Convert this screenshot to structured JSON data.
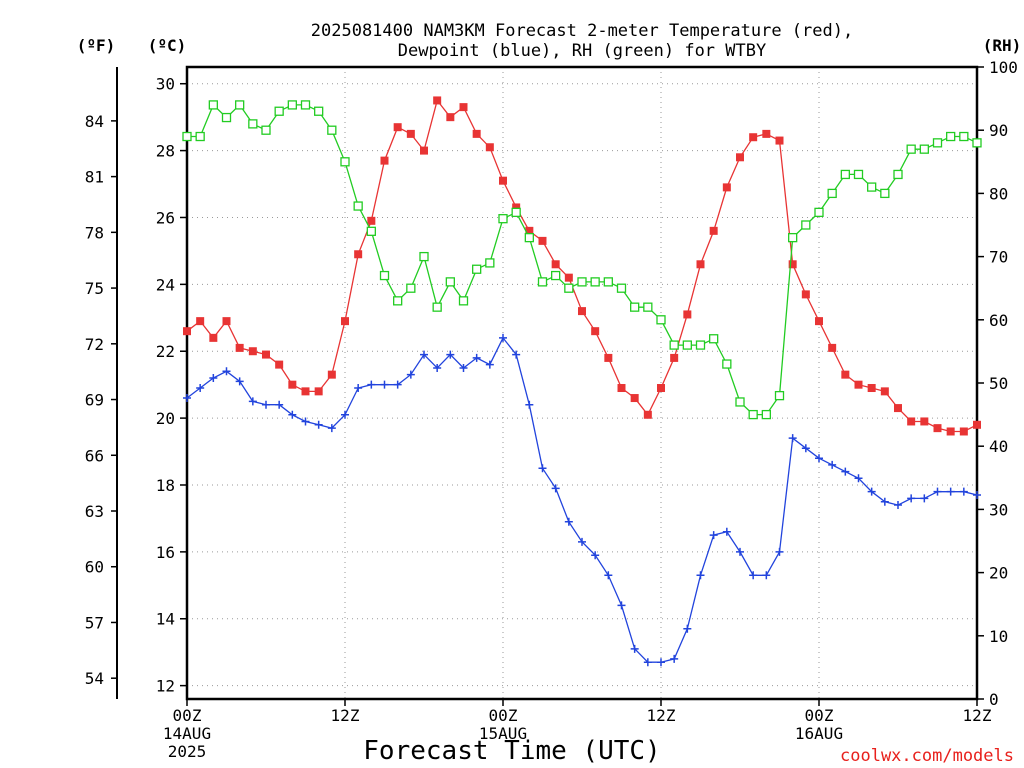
{
  "chart_data": {
    "type": "line",
    "title_lines": [
      "2025081400 NAM3KM Forecast 2-meter Temperature (red),",
      "Dewpoint (blue), RH (green) for WTBY"
    ],
    "xlabel": "Forecast Time (UTC)",
    "credit": "coolwx.com/models",
    "unit_labels": {
      "fahrenheit": "(ºF)",
      "celsius": "(ºC)",
      "rh": "(RH)"
    },
    "x_ticks": [
      {
        "hour": 0,
        "lines": [
          "00Z",
          "14AUG",
          "2025"
        ]
      },
      {
        "hour": 12,
        "lines": [
          "12Z"
        ]
      },
      {
        "hour": 24,
        "lines": [
          "00Z",
          "15AUG"
        ]
      },
      {
        "hour": 36,
        "lines": [
          "12Z"
        ]
      },
      {
        "hour": 48,
        "lines": [
          "00Z",
          "16AUG"
        ]
      },
      {
        "hour": 60,
        "lines": [
          "12Z"
        ]
      }
    ],
    "xlim": [
      0,
      60
    ],
    "ylim_c": [
      11.6,
      30.5
    ],
    "ylim_rh": [
      0,
      100
    ],
    "celsius_ticks": [
      "12",
      "14",
      "16",
      "18",
      "20",
      "22",
      "24",
      "26",
      "28",
      "30"
    ],
    "fahrenheit_ticks": [
      "54",
      "57",
      "60",
      "63",
      "66",
      "69",
      "72",
      "75",
      "78",
      "81",
      "84"
    ],
    "rh_ticks": [
      "0",
      "10",
      "20",
      "30",
      "40",
      "50",
      "60",
      "70",
      "80",
      "90",
      "100"
    ],
    "grid": true,
    "colors": {
      "temperature": "#e83434",
      "dewpoint": "#2244dd",
      "rh": "#22cc22",
      "credit": "#e8201c"
    },
    "series": [
      {
        "name": "Temperature",
        "axis": "celsius",
        "marker": "filled-square",
        "hours": [
          0,
          1,
          2,
          3,
          4,
          5,
          6,
          7,
          8,
          9,
          10,
          11,
          12,
          13,
          14,
          15,
          16,
          17,
          18,
          19,
          20,
          21,
          22,
          23,
          24,
          25,
          26,
          27,
          28,
          29,
          30,
          31,
          32,
          33,
          34,
          35,
          36,
          37,
          38,
          39,
          40,
          41,
          42,
          43,
          44,
          45,
          46,
          47,
          48,
          49,
          50,
          51,
          52,
          53,
          54,
          55,
          56,
          57,
          58,
          59,
          60
        ],
        "values": [
          22.6,
          22.9,
          22.4,
          22.9,
          22.1,
          22.0,
          21.9,
          21.6,
          21.0,
          20.8,
          20.8,
          21.3,
          22.9,
          24.9,
          25.9,
          27.7,
          28.7,
          28.5,
          28.0,
          29.5,
          29.0,
          29.3,
          28.5,
          28.1,
          27.1,
          26.3,
          25.6,
          25.3,
          24.6,
          24.2,
          23.2,
          22.6,
          21.8,
          20.9,
          20.6,
          20.1,
          20.9,
          21.8,
          23.1,
          24.6,
          25.6,
          26.9,
          27.8,
          28.4,
          28.5,
          28.3,
          24.6,
          23.7,
          22.9,
          22.1,
          21.3,
          21.0,
          20.9,
          20.8,
          20.3,
          19.9,
          19.9,
          19.7,
          19.6,
          19.6,
          19.8
        ]
      },
      {
        "name": "Dewpoint",
        "axis": "celsius",
        "marker": "plus",
        "hours": [
          0,
          1,
          2,
          3,
          4,
          5,
          6,
          7,
          8,
          9,
          10,
          11,
          12,
          13,
          14,
          15,
          16,
          17,
          18,
          19,
          20,
          21,
          22,
          23,
          24,
          25,
          26,
          27,
          28,
          29,
          30,
          31,
          32,
          33,
          34,
          35,
          36,
          37,
          38,
          39,
          40,
          41,
          42,
          43,
          44,
          45,
          46,
          47,
          48,
          49,
          50,
          51,
          52,
          53,
          54,
          55,
          56,
          57,
          58,
          59,
          60
        ],
        "values": [
          20.6,
          20.9,
          21.2,
          21.4,
          21.1,
          20.5,
          20.4,
          20.4,
          20.1,
          19.9,
          19.8,
          19.7,
          20.1,
          20.9,
          21.0,
          21.0,
          21.0,
          21.3,
          21.9,
          21.5,
          21.9,
          21.5,
          21.8,
          21.6,
          22.4,
          21.9,
          20.4,
          18.5,
          17.9,
          16.9,
          16.3,
          15.9,
          15.3,
          14.4,
          13.1,
          12.7,
          12.7,
          12.8,
          13.7,
          15.3,
          16.5,
          16.6,
          16.0,
          15.3,
          15.3,
          16.0,
          19.4,
          19.1,
          18.8,
          18.6,
          18.4,
          18.2,
          17.8,
          17.5,
          17.4,
          17.6,
          17.6,
          17.8,
          17.8,
          17.8,
          17.7
        ]
      },
      {
        "name": "RH",
        "axis": "rh",
        "marker": "open-square",
        "hours": [
          0,
          1,
          2,
          3,
          4,
          5,
          6,
          7,
          8,
          9,
          10,
          11,
          12,
          13,
          14,
          15,
          16,
          17,
          18,
          19,
          20,
          21,
          22,
          23,
          24,
          25,
          26,
          27,
          28,
          29,
          30,
          31,
          32,
          33,
          34,
          35,
          36,
          37,
          38,
          39,
          40,
          41,
          42,
          43,
          44,
          45,
          46,
          47,
          48,
          49,
          50,
          51,
          52,
          53,
          54,
          55,
          56,
          57,
          58,
          59,
          60
        ],
        "values": [
          89,
          89,
          94,
          92,
          94,
          91,
          90,
          93,
          94,
          94,
          93,
          90,
          85,
          78,
          74,
          67,
          63,
          65,
          70,
          62,
          66,
          63,
          68,
          69,
          76,
          77,
          73,
          66,
          67,
          65,
          66,
          66,
          66,
          65,
          62,
          62,
          60,
          56,
          56,
          56,
          57,
          53,
          47,
          45,
          45,
          48,
          73,
          75,
          77,
          80,
          83,
          83,
          81,
          80,
          83,
          87,
          87,
          88,
          89,
          89,
          88
        ]
      }
    ]
  }
}
